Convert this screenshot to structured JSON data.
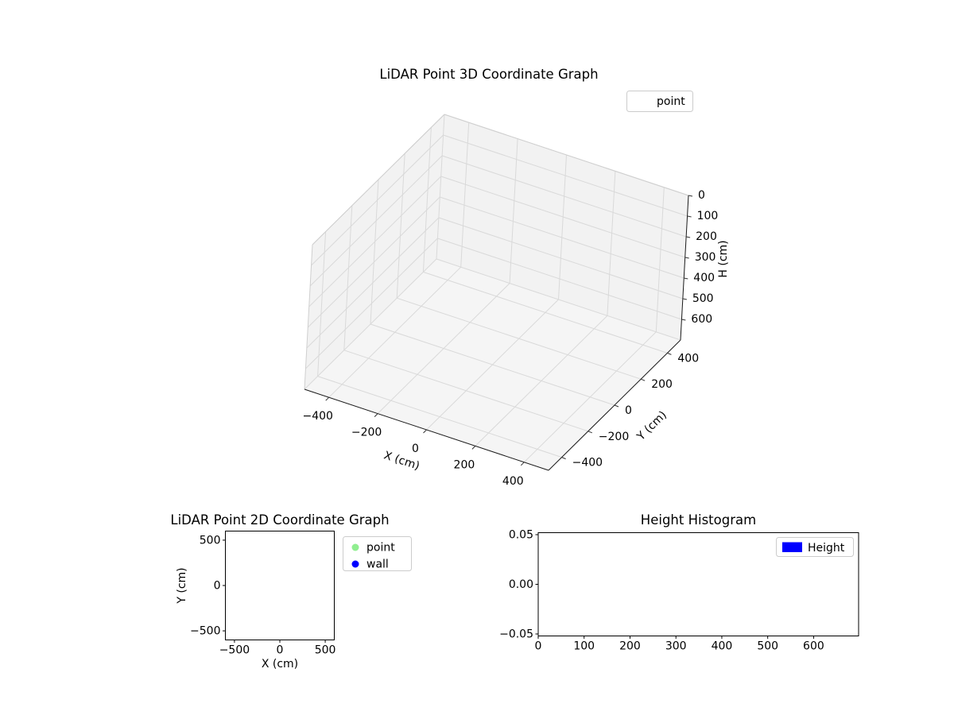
{
  "figure": {
    "background": "#ffffff"
  },
  "chart_data": [
    {
      "type": "scatter",
      "projection": "3d",
      "title": "LiDAR Point 3D Coordinate Graph",
      "xlabel": "X (cm)",
      "ylabel": "Y (cm)",
      "zlabel": "H (cm)",
      "xlim": [
        -500,
        500
      ],
      "ylim": [
        -500,
        500
      ],
      "zlim": [
        0,
        700
      ],
      "z_axis_inverted": true,
      "grid": true,
      "xtick_values": [
        -400,
        -200,
        0,
        200,
        400
      ],
      "xtick_labels": [
        "−400",
        "−200",
        "0",
        "200",
        "400"
      ],
      "ytick_values": [
        400,
        200,
        0,
        -200,
        -400
      ],
      "ytick_labels": [
        "400",
        "200",
        "0",
        "−200",
        "−400"
      ],
      "ztick_values": [
        0,
        100,
        200,
        300,
        400,
        500,
        600
      ],
      "ztick_labels": [
        "0",
        "100",
        "200",
        "300",
        "400",
        "500",
        "600"
      ],
      "legend": {
        "position": "upper right",
        "entries": [
          {
            "label": "point",
            "marker": "none"
          }
        ]
      },
      "series": [
        {
          "name": "point",
          "x": [],
          "y": [],
          "z": []
        }
      ]
    },
    {
      "type": "scatter",
      "title": "LiDAR Point 2D Coordinate Graph",
      "xlabel": "X (cm)",
      "ylabel": "Y (cm)",
      "xlim": [
        -600,
        600
      ],
      "ylim": [
        -600,
        600
      ],
      "grid": false,
      "xtick_values": [
        -500,
        0,
        500
      ],
      "xtick_labels": [
        "−500",
        "0",
        "500"
      ],
      "ytick_values": [
        500,
        0,
        -500
      ],
      "ytick_labels": [
        "500",
        "0",
        "−500"
      ],
      "legend": {
        "position": "outside upper right",
        "entries": [
          {
            "label": "point",
            "color": "#90ee90"
          },
          {
            "label": "wall",
            "color": "#0000ff"
          }
        ]
      },
      "series": [
        {
          "name": "point",
          "color": "#90ee90",
          "x": [],
          "y": []
        },
        {
          "name": "wall",
          "color": "#0000ff",
          "x": [],
          "y": []
        }
      ]
    },
    {
      "type": "bar",
      "subtype": "histogram",
      "title": "Height Histogram",
      "xlim": [
        0,
        698
      ],
      "ylim": [
        -0.052,
        0.052
      ],
      "grid": false,
      "xtick_values": [
        0,
        100,
        200,
        300,
        400,
        500,
        600
      ],
      "xtick_labels": [
        "0",
        "100",
        "200",
        "300",
        "400",
        "500",
        "600"
      ],
      "ytick_values": [
        -0.05,
        0,
        0.05
      ],
      "ytick_labels": [
        "−0.05",
        "0.00",
        "0.05"
      ],
      "legend": {
        "position": "upper right",
        "entries": [
          {
            "label": "Height",
            "color": "#0000ff"
          }
        ]
      },
      "categories": [],
      "values": []
    }
  ]
}
